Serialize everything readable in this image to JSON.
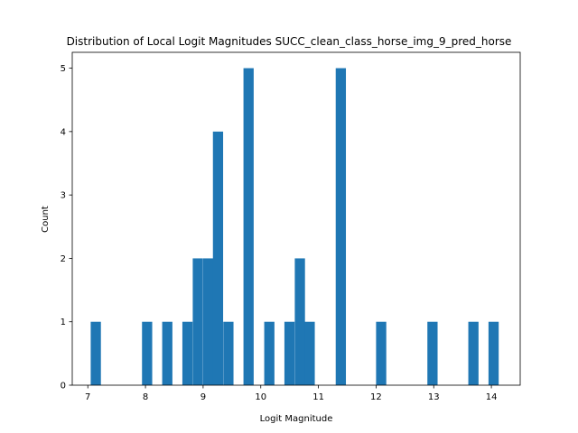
{
  "chart_data": {
    "type": "bar",
    "title": "Distribution of Local Logit Magnitudes SUCC_clean_class_horse_img_9_pred_horse",
    "xlabel": "Logit Magnitude",
    "ylabel": "Count",
    "xlim": [
      6.73,
      14.5
    ],
    "ylim": [
      0,
      5.25
    ],
    "xticks": [
      7,
      8,
      9,
      10,
      11,
      12,
      13,
      14
    ],
    "yticks": [
      0,
      1,
      2,
      3,
      4,
      5
    ],
    "bin_width": 0.177,
    "color": "#1f77b4",
    "bins": [
      {
        "left": 7.05,
        "count": 1
      },
      {
        "left": 7.94,
        "count": 1
      },
      {
        "left": 8.29,
        "count": 1
      },
      {
        "left": 8.64,
        "count": 1
      },
      {
        "left": 8.82,
        "count": 2
      },
      {
        "left": 9.0,
        "count": 2
      },
      {
        "left": 9.17,
        "count": 4
      },
      {
        "left": 9.35,
        "count": 1
      },
      {
        "left": 9.7,
        "count": 5
      },
      {
        "left": 10.06,
        "count": 1
      },
      {
        "left": 10.41,
        "count": 1
      },
      {
        "left": 10.59,
        "count": 2
      },
      {
        "left": 10.76,
        "count": 1
      },
      {
        "left": 11.3,
        "count": 5
      },
      {
        "left": 12.0,
        "count": 1
      },
      {
        "left": 12.89,
        "count": 1
      },
      {
        "left": 13.6,
        "count": 1
      },
      {
        "left": 13.95,
        "count": 1
      }
    ]
  }
}
